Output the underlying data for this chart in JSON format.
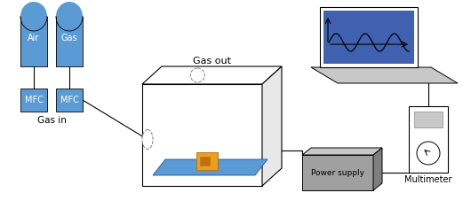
{
  "bg_color": "#ffffff",
  "blue_color": "#5b9bd5",
  "gray_color": "#a0a0a0",
  "gray_dark": "#808080",
  "gray_light": "#c8c8c8",
  "gray_lighter": "#e8e8e8",
  "orange_color": "#e8a020",
  "orange_dark": "#c07010",
  "screen_bg": "#4060b0",
  "labels": {
    "air": "Air",
    "gas": "Gas",
    "mfc": "MFC",
    "gas_in": "Gas in",
    "gas_out": "Gas out",
    "power_supply": "Power supply",
    "multimeter": "Multimeter"
  },
  "figsize": [
    5.3,
    2.44
  ],
  "dpi": 100
}
